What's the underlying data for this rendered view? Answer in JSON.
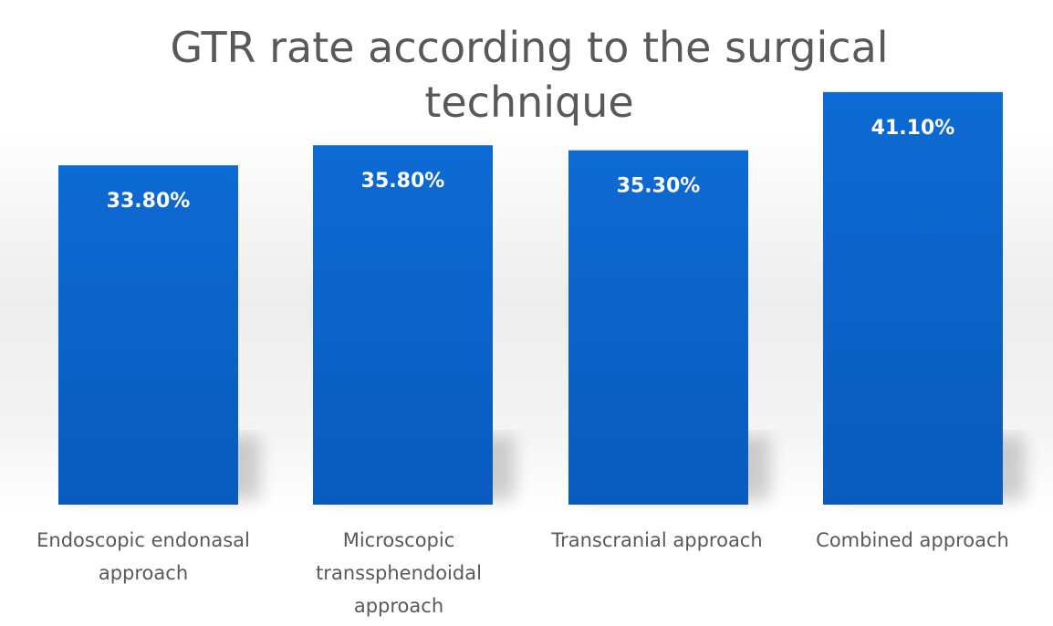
{
  "chart_data": {
    "type": "bar",
    "title": "GTR rate according to the surgical technique",
    "categories": [
      "Endoscopic endonasal approach",
      "Microscopic transsphendoidal approach",
      "Transcranial approach",
      "Combined approach"
    ],
    "values": [
      33.8,
      35.8,
      35.3,
      41.1
    ],
    "data_labels": [
      "33.80%",
      "35.80%",
      "35.30%",
      "41.10%"
    ],
    "xlabel": "",
    "ylabel": "",
    "ylim": [
      0,
      45
    ],
    "grid": false,
    "legend": "none",
    "bar_color": "#0a64c8"
  }
}
